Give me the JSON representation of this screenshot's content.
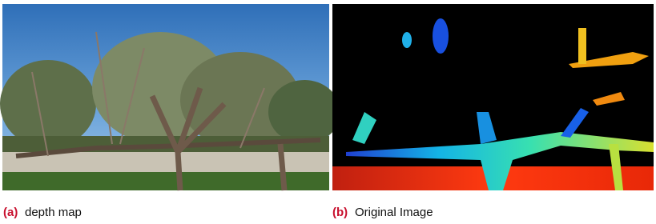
{
  "figure": {
    "panels": [
      {
        "label": "(a)",
        "caption": "depth map"
      },
      {
        "label": "(b)",
        "caption": "Original Image"
      }
    ]
  }
}
